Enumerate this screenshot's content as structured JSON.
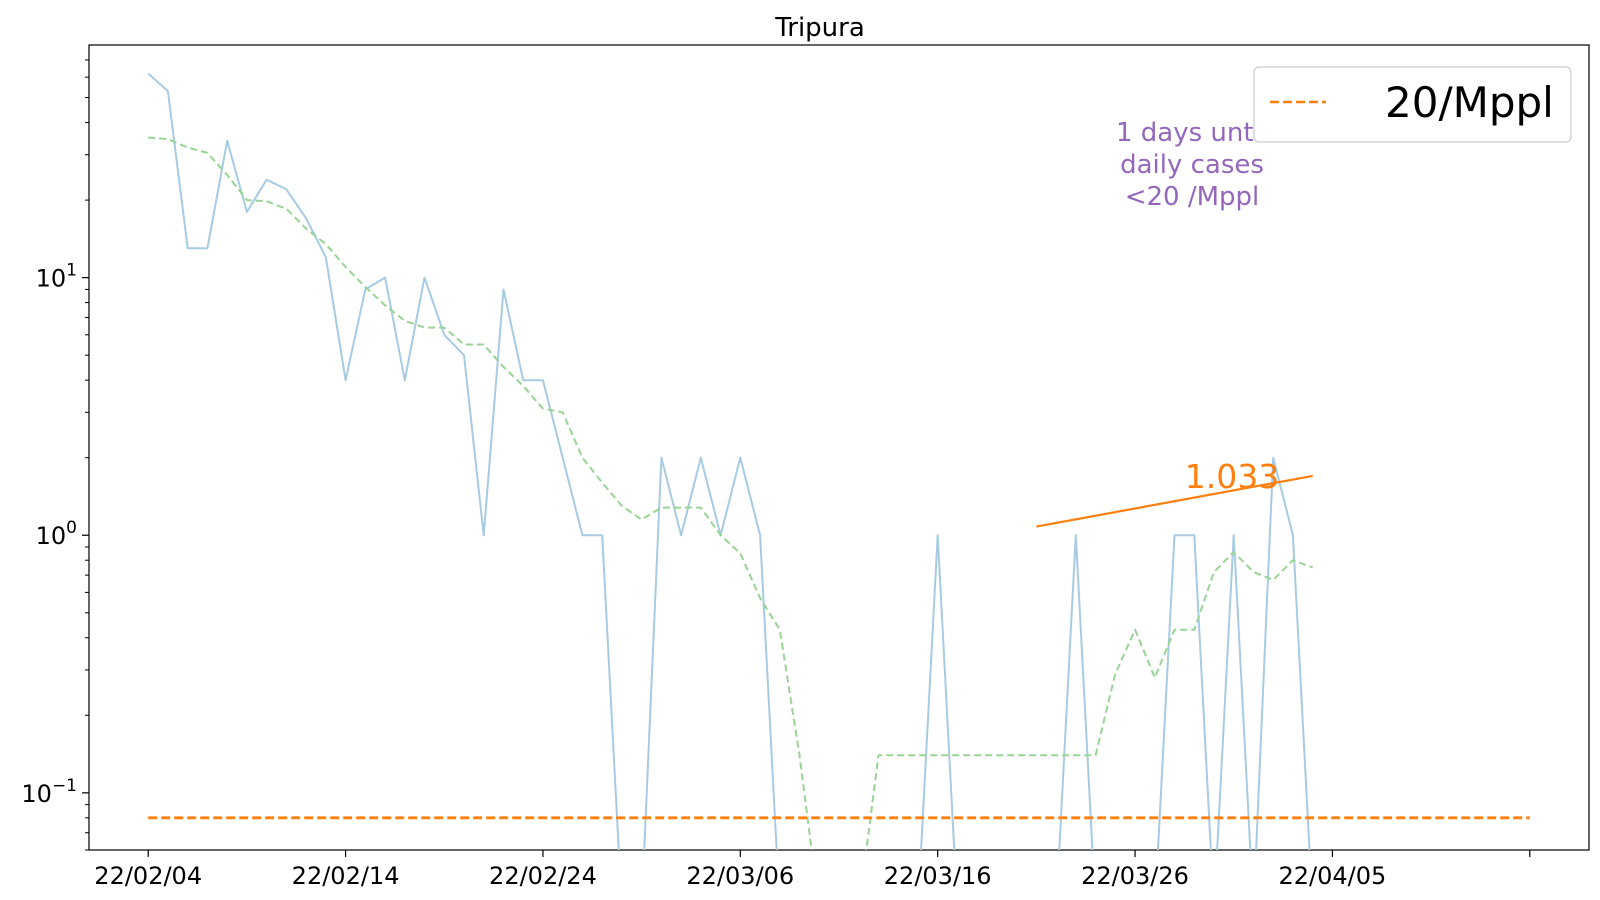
{
  "chart_data": {
    "type": "line",
    "title": "Tripura",
    "xlabel": "",
    "ylabel": "",
    "y_scale": "log",
    "ylim": [
      0.06,
      80
    ],
    "xlim": [
      "22/02/01",
      "22/04/18"
    ],
    "x_ticks": [
      "22/02/04",
      "22/02/14",
      "22/02/24",
      "22/03/06",
      "22/03/16",
      "22/03/26",
      "22/04/05",
      ""
    ],
    "y_ticks": [
      {
        "base": "10",
        "exp": "1",
        "value": 10
      },
      {
        "base": "10",
        "exp": "0",
        "value": 1
      },
      {
        "base": "10",
        "exp": "−1",
        "value": 0.1
      }
    ],
    "grid": false,
    "legend_position": "top-right",
    "colors": {
      "daily": "#a6cbe3",
      "average": "#98d594",
      "threshold": "#ff7f0e",
      "trend": "#ff7f0e",
      "annotation": "#9467bd"
    },
    "series": [
      {
        "style": "solid",
        "color": "#a6cbe3",
        "x": [
          "22/02/04",
          "22/02/05",
          "22/02/06",
          "22/02/07",
          "22/02/08",
          "22/02/09",
          "22/02/10",
          "22/02/11",
          "22/02/12",
          "22/02/13",
          "22/02/14",
          "22/02/15",
          "22/02/16",
          "22/02/17",
          "22/02/18",
          "22/02/19",
          "22/02/20",
          "22/02/21",
          "22/02/22",
          "22/02/23",
          "22/02/24",
          "22/02/25",
          "22/02/26",
          "22/02/27",
          "22/02/28",
          "22/03/01",
          "22/03/02",
          "22/03/03",
          "22/03/04",
          "22/03/05",
          "22/03/06",
          "22/03/07",
          "22/03/08",
          "22/03/09",
          "22/03/10",
          "22/03/11",
          "22/03/12",
          "22/03/13",
          "22/03/14",
          "22/03/15",
          "22/03/16",
          "22/03/17",
          "22/03/18",
          "22/03/19",
          "22/03/20",
          "22/03/21",
          "22/03/22",
          "22/03/23",
          "22/03/24",
          "22/03/25",
          "22/03/26",
          "22/03/27",
          "22/03/28",
          "22/03/29",
          "22/03/30",
          "22/03/31",
          "22/04/01",
          "22/04/02",
          "22/04/03",
          "22/04/04"
        ],
        "y": [
          62,
          53,
          13,
          13,
          34,
          18,
          24,
          22,
          17,
          12,
          4,
          9,
          10,
          4,
          10,
          6,
          5,
          1,
          9,
          4,
          4,
          2,
          1,
          1,
          0,
          0,
          2,
          1,
          2,
          1,
          2,
          1,
          0,
          0,
          0,
          0,
          0,
          0,
          0,
          0,
          1,
          0,
          0,
          0,
          0,
          0,
          0,
          1,
          0,
          0,
          0,
          0,
          1,
          1,
          0,
          1,
          0,
          2,
          1,
          0
        ]
      },
      {
        "style": "dashed",
        "color": "#98d594",
        "x": [
          "22/02/04",
          "22/02/05",
          "22/02/06",
          "22/02/07",
          "22/02/08",
          "22/02/09",
          "22/02/10",
          "22/02/11",
          "22/02/12",
          "22/02/13",
          "22/02/14",
          "22/02/15",
          "22/02/16",
          "22/02/17",
          "22/02/18",
          "22/02/19",
          "22/02/20",
          "22/02/21",
          "22/02/22",
          "22/02/23",
          "22/02/24",
          "22/02/25",
          "22/02/26",
          "22/02/27",
          "22/02/28",
          "22/03/01",
          "22/03/02",
          "22/03/03",
          "22/03/04",
          "22/03/05",
          "22/03/06",
          "22/03/07",
          "22/03/08",
          "22/03/09",
          "22/03/10",
          "22/03/11",
          "22/03/12",
          "22/03/13",
          "22/03/14",
          "22/03/15",
          "22/03/16",
          "22/03/17",
          "22/03/18",
          "22/03/19",
          "22/03/20",
          "22/03/21",
          "22/03/22",
          "22/03/23",
          "22/03/24",
          "22/03/25",
          "22/03/26",
          "22/03/27",
          "22/03/28",
          "22/03/29",
          "22/03/30",
          "22/03/31",
          "22/04/01",
          "22/04/02",
          "22/04/03",
          "22/04/04"
        ],
        "y": [
          35,
          34.5,
          32,
          30.5,
          25,
          20,
          19.8,
          18.5,
          15.5,
          13.5,
          11,
          9.2,
          7.8,
          6.8,
          6.4,
          6.4,
          5.5,
          5.5,
          4.5,
          3.8,
          3.1,
          3.0,
          2.0,
          1.6,
          1.3,
          1.15,
          1.28,
          1.28,
          1.28,
          1.0,
          0.85,
          0.57,
          0.43,
          0.14,
          0,
          0,
          0,
          0.14,
          0.14,
          0.14,
          0.14,
          0.14,
          0.14,
          0.14,
          0.14,
          0.14,
          0.14,
          0.14,
          0.14,
          0.29,
          0.43,
          0.28,
          0.43,
          0.43,
          0.72,
          0.86,
          0.72,
          0.67,
          0.8,
          0.75
        ]
      },
      {
        "name": "20/Mppl",
        "style": "dashed",
        "color": "#ff7f0e",
        "x": [
          "22/02/04",
          "22/04/15"
        ],
        "y": [
          0.08,
          0.08
        ]
      },
      {
        "style": "solid",
        "color": "#ff7f0e",
        "x": [
          "22/03/21",
          "22/04/04"
        ],
        "y": [
          1.08,
          1.7
        ]
      }
    ],
    "annotations": {
      "slope": "1.033",
      "days_line1": "1 days until",
      "days_line2": "daily cases",
      "days_line3": "<20 /Mppl"
    },
    "legend": {
      "label": "20/Mppl"
    }
  }
}
